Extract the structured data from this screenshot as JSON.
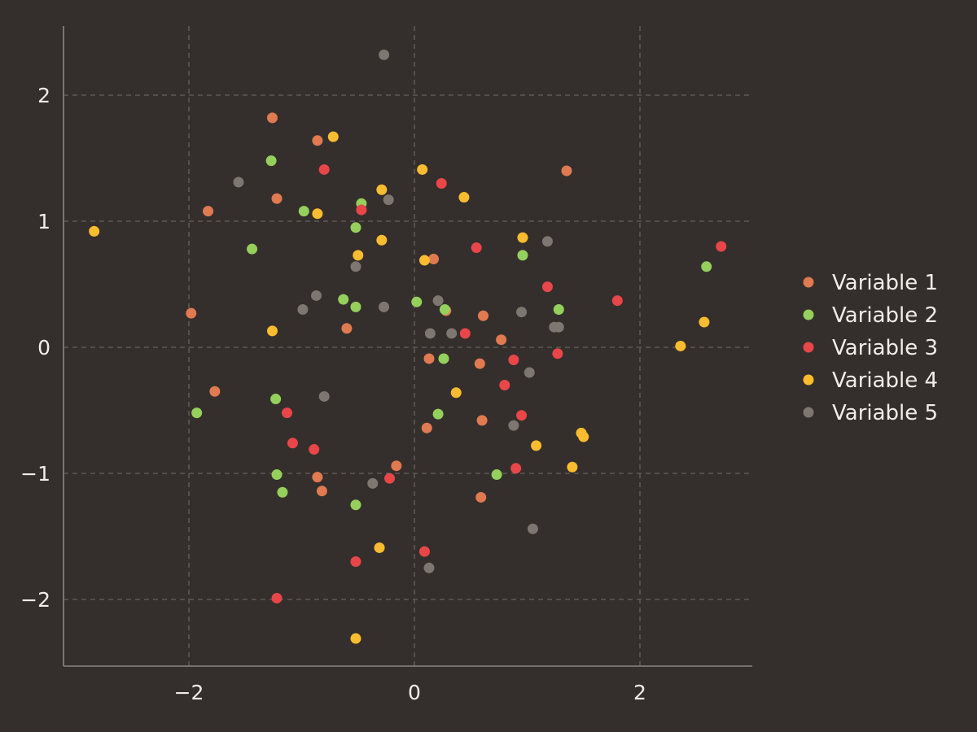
{
  "chart_data": {
    "type": "scatter",
    "title": "",
    "xlabel": "",
    "ylabel": "",
    "xlim": [
      -3.0,
      3.0
    ],
    "ylim": [
      -2.55,
      2.55
    ],
    "xticks": [
      -2,
      0,
      2
    ],
    "yticks": [
      -2,
      -1,
      0,
      1,
      2
    ],
    "xtick_labels": [
      "−2",
      "0",
      "2"
    ],
    "ytick_labels": [
      "−2",
      "−1",
      "0",
      "1",
      "2"
    ],
    "grid": true,
    "legend_position": "right",
    "background": "#342f2c",
    "grid_color": "#5e5955",
    "axis_color": "#8a8580",
    "text_color": "#f2ede8",
    "series": [
      {
        "name": "Variable 1",
        "color": "#e07a50",
        "points": [
          [
            -1.26,
            1.82
          ],
          [
            -0.86,
            1.64
          ],
          [
            1.35,
            1.4
          ],
          [
            -1.22,
            1.18
          ],
          [
            -1.83,
            1.08
          ],
          [
            0.17,
            0.7
          ],
          [
            -1.98,
            0.27
          ],
          [
            0.28,
            0.29
          ],
          [
            0.61,
            0.25
          ],
          [
            -0.6,
            0.15
          ],
          [
            0.77,
            0.06
          ],
          [
            0.13,
            -0.09
          ],
          [
            0.58,
            -0.13
          ],
          [
            -1.77,
            -0.35
          ],
          [
            0.6,
            -0.58
          ],
          [
            0.11,
            -0.64
          ],
          [
            -0.16,
            -0.94
          ],
          [
            -0.86,
            -1.03
          ],
          [
            -0.82,
            -1.14
          ],
          [
            0.59,
            -1.19
          ]
        ]
      },
      {
        "name": "Variable 2",
        "color": "#95cf5c",
        "points": [
          [
            -1.27,
            1.48
          ],
          [
            -0.47,
            1.14
          ],
          [
            -0.98,
            1.08
          ],
          [
            -0.52,
            0.95
          ],
          [
            -1.44,
            0.78
          ],
          [
            0.96,
            0.73
          ],
          [
            -0.63,
            0.38
          ],
          [
            0.02,
            0.36
          ],
          [
            -0.52,
            0.32
          ],
          [
            0.27,
            0.3
          ],
          [
            1.28,
            0.3
          ],
          [
            2.59,
            0.64
          ],
          [
            0.26,
            -0.09
          ],
          [
            -1.93,
            -0.52
          ],
          [
            -1.23,
            -0.41
          ],
          [
            0.21,
            -0.53
          ],
          [
            0.73,
            -1.01
          ],
          [
            -1.22,
            -1.01
          ],
          [
            -1.17,
            -1.15
          ],
          [
            -0.52,
            -1.25
          ]
        ]
      },
      {
        "name": "Variable 3",
        "color": "#e84649",
        "points": [
          [
            -0.8,
            1.41
          ],
          [
            0.24,
            1.3
          ],
          [
            -0.47,
            1.09
          ],
          [
            0.55,
            0.79
          ],
          [
            2.72,
            0.8
          ],
          [
            1.18,
            0.48
          ],
          [
            1.8,
            0.37
          ],
          [
            0.45,
            0.11
          ],
          [
            1.27,
            -0.05
          ],
          [
            0.88,
            -0.1
          ],
          [
            0.8,
            -0.3
          ],
          [
            0.95,
            -0.54
          ],
          [
            -1.13,
            -0.52
          ],
          [
            -1.08,
            -0.76
          ],
          [
            -0.89,
            -0.81
          ],
          [
            0.9,
            -0.96
          ],
          [
            -0.22,
            -1.04
          ],
          [
            0.09,
            -1.62
          ],
          [
            -0.52,
            -1.7
          ],
          [
            -1.22,
            -1.99
          ]
        ]
      },
      {
        "name": "Variable 4",
        "color": "#fbbc2f",
        "points": [
          [
            -0.72,
            1.67
          ],
          [
            0.07,
            1.41
          ],
          [
            -0.29,
            1.25
          ],
          [
            0.44,
            1.19
          ],
          [
            -0.86,
            1.06
          ],
          [
            -2.84,
            0.92
          ],
          [
            0.96,
            0.87
          ],
          [
            -0.29,
            0.85
          ],
          [
            -0.5,
            0.73
          ],
          [
            0.09,
            0.69
          ],
          [
            2.57,
            0.2
          ],
          [
            -1.26,
            0.13
          ],
          [
            2.36,
            0.01
          ],
          [
            0.37,
            -0.36
          ],
          [
            1.48,
            -0.68
          ],
          [
            1.5,
            -0.71
          ],
          [
            1.08,
            -0.78
          ],
          [
            1.4,
            -0.95
          ],
          [
            -0.31,
            -1.59
          ],
          [
            -0.52,
            -2.31
          ]
        ]
      },
      {
        "name": "Variable 5",
        "color": "#7d7671",
        "points": [
          [
            -0.27,
            2.32
          ],
          [
            -1.56,
            1.31
          ],
          [
            -0.23,
            1.17
          ],
          [
            1.18,
            0.84
          ],
          [
            -0.52,
            0.64
          ],
          [
            -0.87,
            0.41
          ],
          [
            -0.99,
            0.3
          ],
          [
            -0.27,
            0.32
          ],
          [
            0.21,
            0.37
          ],
          [
            0.95,
            0.28
          ],
          [
            1.24,
            0.16
          ],
          [
            1.28,
            0.16
          ],
          [
            0.14,
            0.11
          ],
          [
            0.33,
            0.11
          ],
          [
            1.02,
            -0.2
          ],
          [
            -0.8,
            -0.39
          ],
          [
            0.88,
            -0.62
          ],
          [
            -0.37,
            -1.08
          ],
          [
            1.05,
            -1.44
          ],
          [
            0.13,
            -1.75
          ]
        ]
      }
    ]
  }
}
